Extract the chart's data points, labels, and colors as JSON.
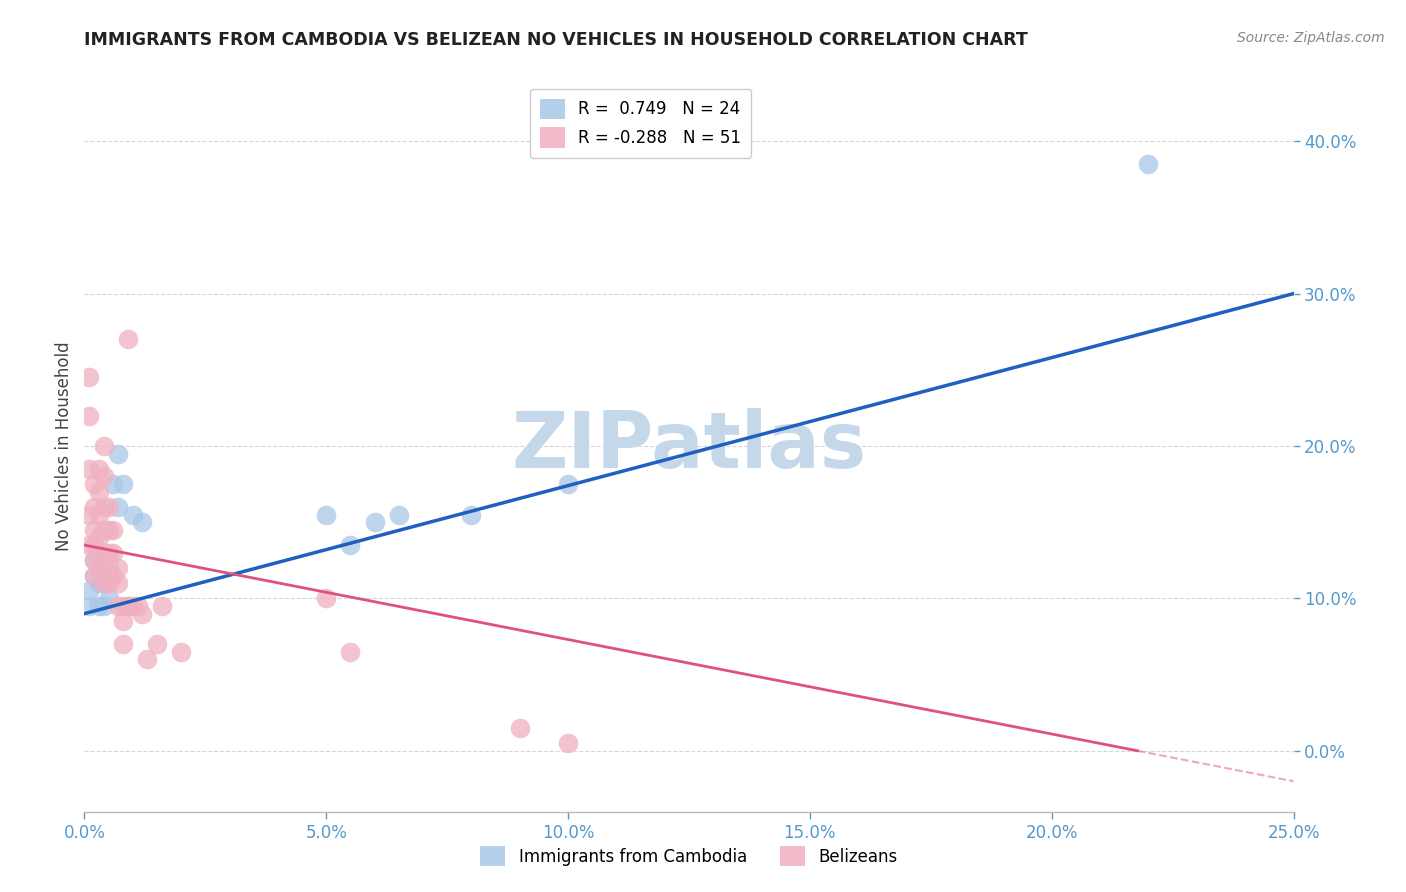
{
  "title": "IMMIGRANTS FROM CAMBODIA VS BELIZEAN NO VEHICLES IN HOUSEHOLD CORRELATION CHART",
  "source": "Source: ZipAtlas.com",
  "xlabel_blue": "Immigrants from Cambodia",
  "xlabel_pink": "Belizeans",
  "ylabel": "No Vehicles in Household",
  "watermark": "ZIPatlas",
  "blue_R": 0.749,
  "blue_N": 24,
  "pink_R": -0.288,
  "pink_N": 51,
  "xlim": [
    0.0,
    0.25
  ],
  "ylim": [
    -0.04,
    0.44
  ],
  "yticks": [
    0.0,
    0.1,
    0.2,
    0.3,
    0.4
  ],
  "xticks": [
    0.0,
    0.05,
    0.1,
    0.15,
    0.2,
    0.25
  ],
  "blue_x": [
    0.001,
    0.001,
    0.002,
    0.002,
    0.003,
    0.003,
    0.004,
    0.004,
    0.005,
    0.005,
    0.006,
    0.007,
    0.007,
    0.008,
    0.009,
    0.01,
    0.012,
    0.05,
    0.055,
    0.06,
    0.065,
    0.08,
    0.1,
    0.22
  ],
  "blue_y": [
    0.095,
    0.105,
    0.115,
    0.125,
    0.11,
    0.095,
    0.11,
    0.095,
    0.115,
    0.1,
    0.175,
    0.16,
    0.195,
    0.175,
    0.095,
    0.155,
    0.15,
    0.155,
    0.135,
    0.15,
    0.155,
    0.155,
    0.175,
    0.385
  ],
  "pink_x": [
    0.001,
    0.001,
    0.001,
    0.001,
    0.001,
    0.002,
    0.002,
    0.002,
    0.002,
    0.002,
    0.002,
    0.003,
    0.003,
    0.003,
    0.003,
    0.003,
    0.003,
    0.004,
    0.004,
    0.004,
    0.004,
    0.004,
    0.004,
    0.004,
    0.005,
    0.005,
    0.005,
    0.005,
    0.005,
    0.006,
    0.006,
    0.006,
    0.007,
    0.007,
    0.007,
    0.008,
    0.008,
    0.008,
    0.009,
    0.009,
    0.01,
    0.011,
    0.012,
    0.013,
    0.015,
    0.016,
    0.02,
    0.05,
    0.055,
    0.09,
    0.1
  ],
  "pink_y": [
    0.245,
    0.22,
    0.185,
    0.155,
    0.135,
    0.175,
    0.16,
    0.145,
    0.135,
    0.125,
    0.115,
    0.185,
    0.17,
    0.155,
    0.14,
    0.13,
    0.12,
    0.2,
    0.18,
    0.16,
    0.145,
    0.13,
    0.12,
    0.11,
    0.16,
    0.145,
    0.13,
    0.12,
    0.11,
    0.145,
    0.13,
    0.115,
    0.12,
    0.11,
    0.095,
    0.095,
    0.085,
    0.07,
    0.27,
    0.095,
    0.095,
    0.095,
    0.09,
    0.06,
    0.07,
    0.095,
    0.065,
    0.1,
    0.065,
    0.015,
    0.005
  ],
  "blue_color": "#a8c8e8",
  "pink_color": "#f0b0c0",
  "blue_line_color": "#2060c0",
  "pink_line_color": "#e05080",
  "background_color": "#ffffff",
  "grid_color": "#cccccc",
  "title_color": "#222222",
  "tick_label_color": "#5599cc",
  "watermark_color": "#c5d8ea",
  "legend_blue_color": "#a8c8e8",
  "legend_pink_color": "#f0b0c0",
  "blue_line_y0": 0.09,
  "blue_line_y1": 0.3,
  "pink_line_y0": 0.135,
  "pink_line_y1": -0.02
}
